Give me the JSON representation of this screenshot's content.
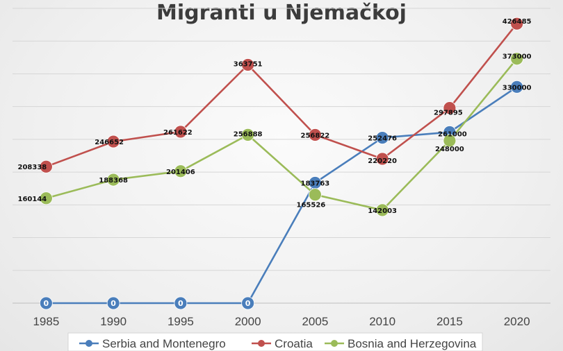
{
  "chart_data": {
    "type": "line",
    "title": "Migranti u Njemačkoj",
    "xlabel": "",
    "ylabel": "",
    "x": [
      "1985",
      "1990",
      "1995",
      "2000",
      "2005",
      "2010",
      "2015",
      "2020"
    ],
    "ylim": [
      0,
      450000
    ],
    "grid": true,
    "legend_position": "bottom",
    "series": [
      {
        "name": "Serbia and Montenegro",
        "color": "#4a7ebb",
        "values": [
          0,
          0,
          0,
          0,
          183763,
          252476,
          261000,
          330000
        ],
        "labels": [
          "0",
          "0",
          "0",
          "0",
          "183763",
          "252476",
          "261000",
          "330000"
        ]
      },
      {
        "name": "Croatia",
        "color": "#c0504d",
        "values": [
          208338,
          246652,
          261622,
          363751,
          256822,
          220220,
          297895,
          426485
        ],
        "labels": [
          "208338",
          "246652",
          "261622",
          "363751",
          "256822",
          "220220",
          "297895",
          "426485"
        ]
      },
      {
        "name": "Bosnia and Herzegovina",
        "color": "#9bbb59",
        "values": [
          160144,
          188368,
          201406,
          256888,
          165526,
          142003,
          248000,
          373000
        ],
        "labels": [
          "160144",
          "188368",
          "201406",
          "256888",
          "165526",
          "142003",
          "248000",
          "373000"
        ]
      }
    ]
  }
}
